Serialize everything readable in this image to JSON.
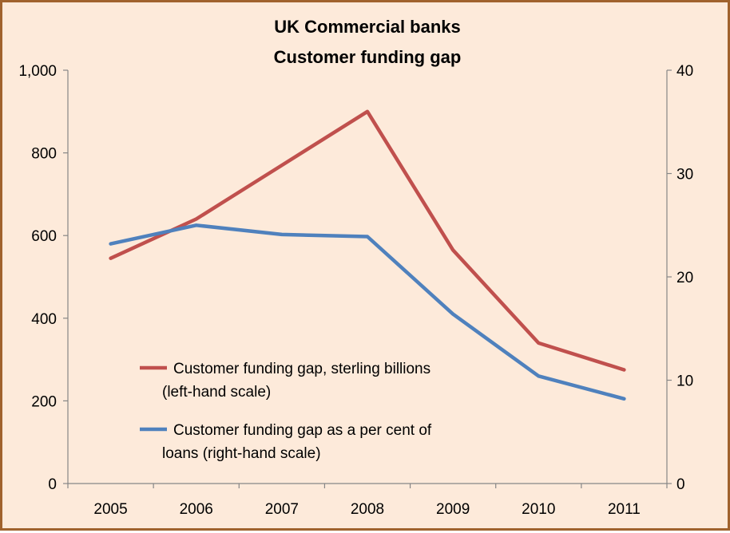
{
  "chart_data": {
    "type": "line",
    "title": "UK Commercial banks",
    "subtitle": "Customer funding gap",
    "categories": [
      "2005",
      "2006",
      "2007",
      "2008",
      "2009",
      "2010",
      "2011"
    ],
    "left_axis": {
      "ylim": [
        0,
        1000
      ],
      "ticks": [
        "0",
        "200",
        "400",
        "600",
        "800",
        "1,000"
      ]
    },
    "right_axis": {
      "ylim": [
        0,
        40
      ],
      "ticks": [
        "0",
        "10",
        "20",
        "30",
        "40"
      ]
    },
    "grid": false,
    "legend_position": "bottom-left inside",
    "series": [
      {
        "name": "Customer funding gap, sterling billions (left-hand scale)",
        "legend_lines": [
          "Customer funding gap, sterling billions",
          "(left-hand scale)"
        ],
        "axis": "left",
        "color": "#c0504d",
        "values": [
          545,
          640,
          770,
          900,
          565,
          340,
          275
        ]
      },
      {
        "name": "Customer funding gap as a per cent of loans (right-hand scale)",
        "legend_lines": [
          "Customer funding gap as a per cent of",
          "loans (right-hand scale)"
        ],
        "axis": "right",
        "color": "#4f81bd",
        "values": [
          23.2,
          25.0,
          24.1,
          23.9,
          16.4,
          10.4,
          8.2
        ]
      }
    ]
  }
}
